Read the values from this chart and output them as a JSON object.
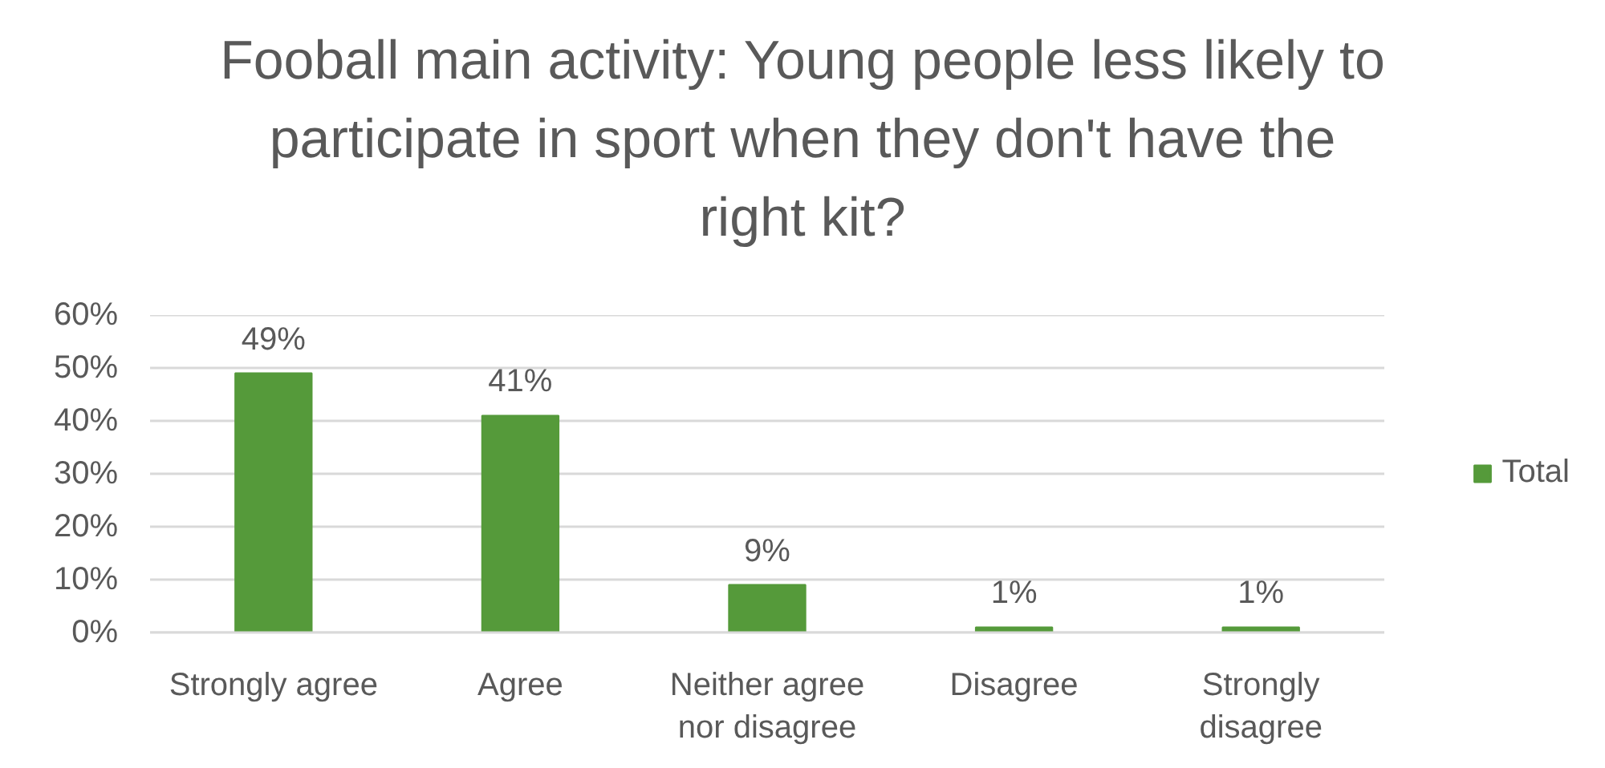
{
  "chart_data": {
    "type": "bar",
    "title": "Fooball main activity: Young people less likely to participate in sport when they don't have the right kit?",
    "categories": [
      "Strongly agree",
      "Agree",
      "Neither agree nor disagree",
      "Disagree",
      "Strongly disagree"
    ],
    "series": [
      {
        "name": "Total",
        "color": "#559a3a",
        "values": [
          49,
          41,
          9,
          1,
          1
        ],
        "value_labels": [
          "49%",
          "41%",
          "9%",
          "1%",
          "1%"
        ]
      }
    ],
    "ylim": [
      0,
      60
    ],
    "yticks": [
      {
        "value": 0,
        "label": "0%"
      },
      {
        "value": 10,
        "label": "10%"
      },
      {
        "value": 20,
        "label": "20%"
      },
      {
        "value": 30,
        "label": "30%"
      },
      {
        "value": 40,
        "label": "40%"
      },
      {
        "value": 50,
        "label": "50%"
      },
      {
        "value": 60,
        "label": "60%"
      }
    ],
    "grid": "y",
    "legend": "right"
  }
}
